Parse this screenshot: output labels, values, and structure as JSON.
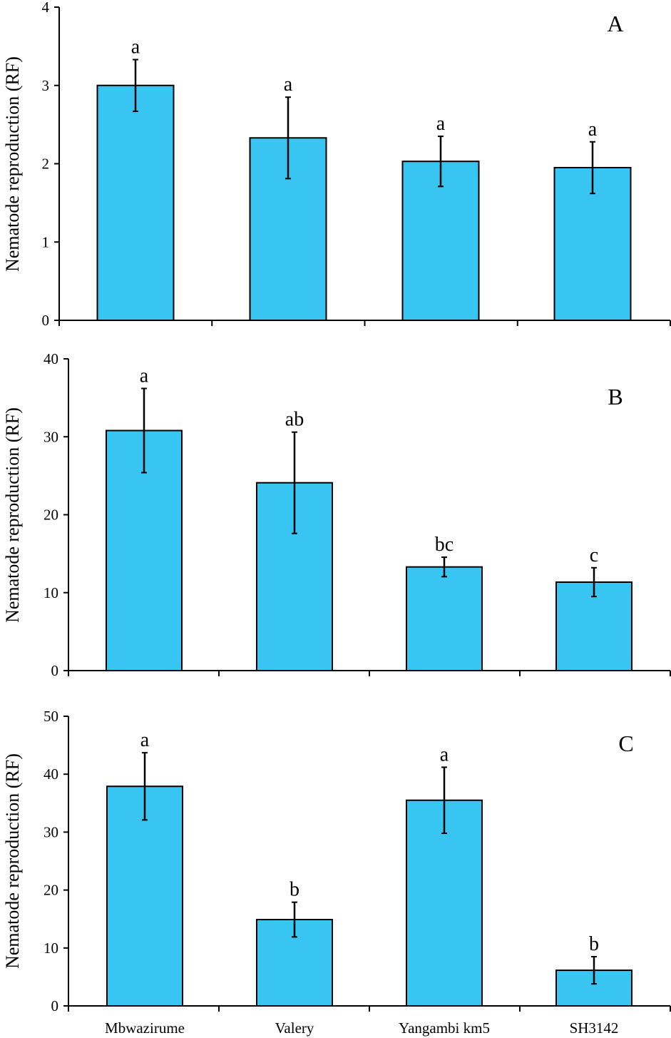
{
  "chart_data": [
    {
      "type": "bar",
      "panel_label": "A",
      "categories": [
        "Mbwazirume",
        "Valery",
        "Yangambi km5",
        "SH3142"
      ],
      "values": [
        3.0,
        2.33,
        2.03,
        1.95
      ],
      "error_bars": [
        0.33,
        0.52,
        0.32,
        0.33
      ],
      "significance_letters": [
        "a",
        "a",
        "a",
        "a"
      ],
      "ylabel": "Nematode reproduction (RF)",
      "ylim": [
        0,
        4
      ],
      "yticks": [
        "0",
        "1",
        "2",
        "3",
        "4"
      ],
      "show_xtick_labels": false,
      "bar_color": "#38C5F2"
    },
    {
      "type": "bar",
      "panel_label": "B",
      "categories": [
        "Mbwazirume",
        "Valery",
        "Yangambi km5",
        "SH3142"
      ],
      "values": [
        30.8,
        24.1,
        13.3,
        11.35
      ],
      "error_bars": [
        5.4,
        6.5,
        1.25,
        1.85
      ],
      "significance_letters": [
        "a",
        "ab",
        "bc",
        "c"
      ],
      "ylabel": "Nematode reproduction (RF)",
      "ylim": [
        0,
        40
      ],
      "yticks": [
        "0",
        "10",
        "20",
        "30",
        "40"
      ],
      "show_xtick_labels": false,
      "bar_color": "#38C5F2"
    },
    {
      "type": "bar",
      "panel_label": "C",
      "categories": [
        "Mbwazirume",
        "Valery",
        "Yangambi km5",
        "SH3142"
      ],
      "values": [
        37.9,
        14.9,
        35.5,
        6.15
      ],
      "error_bars": [
        5.8,
        3.0,
        5.7,
        2.35
      ],
      "significance_letters": [
        "a",
        "b",
        "a",
        "b"
      ],
      "ylabel": "Nematode reproduction (RF)",
      "ylim": [
        0,
        50
      ],
      "yticks": [
        "0",
        "10",
        "20",
        "30",
        "40",
        "50"
      ],
      "show_xtick_labels": true,
      "bar_color": "#38C5F2"
    }
  ]
}
